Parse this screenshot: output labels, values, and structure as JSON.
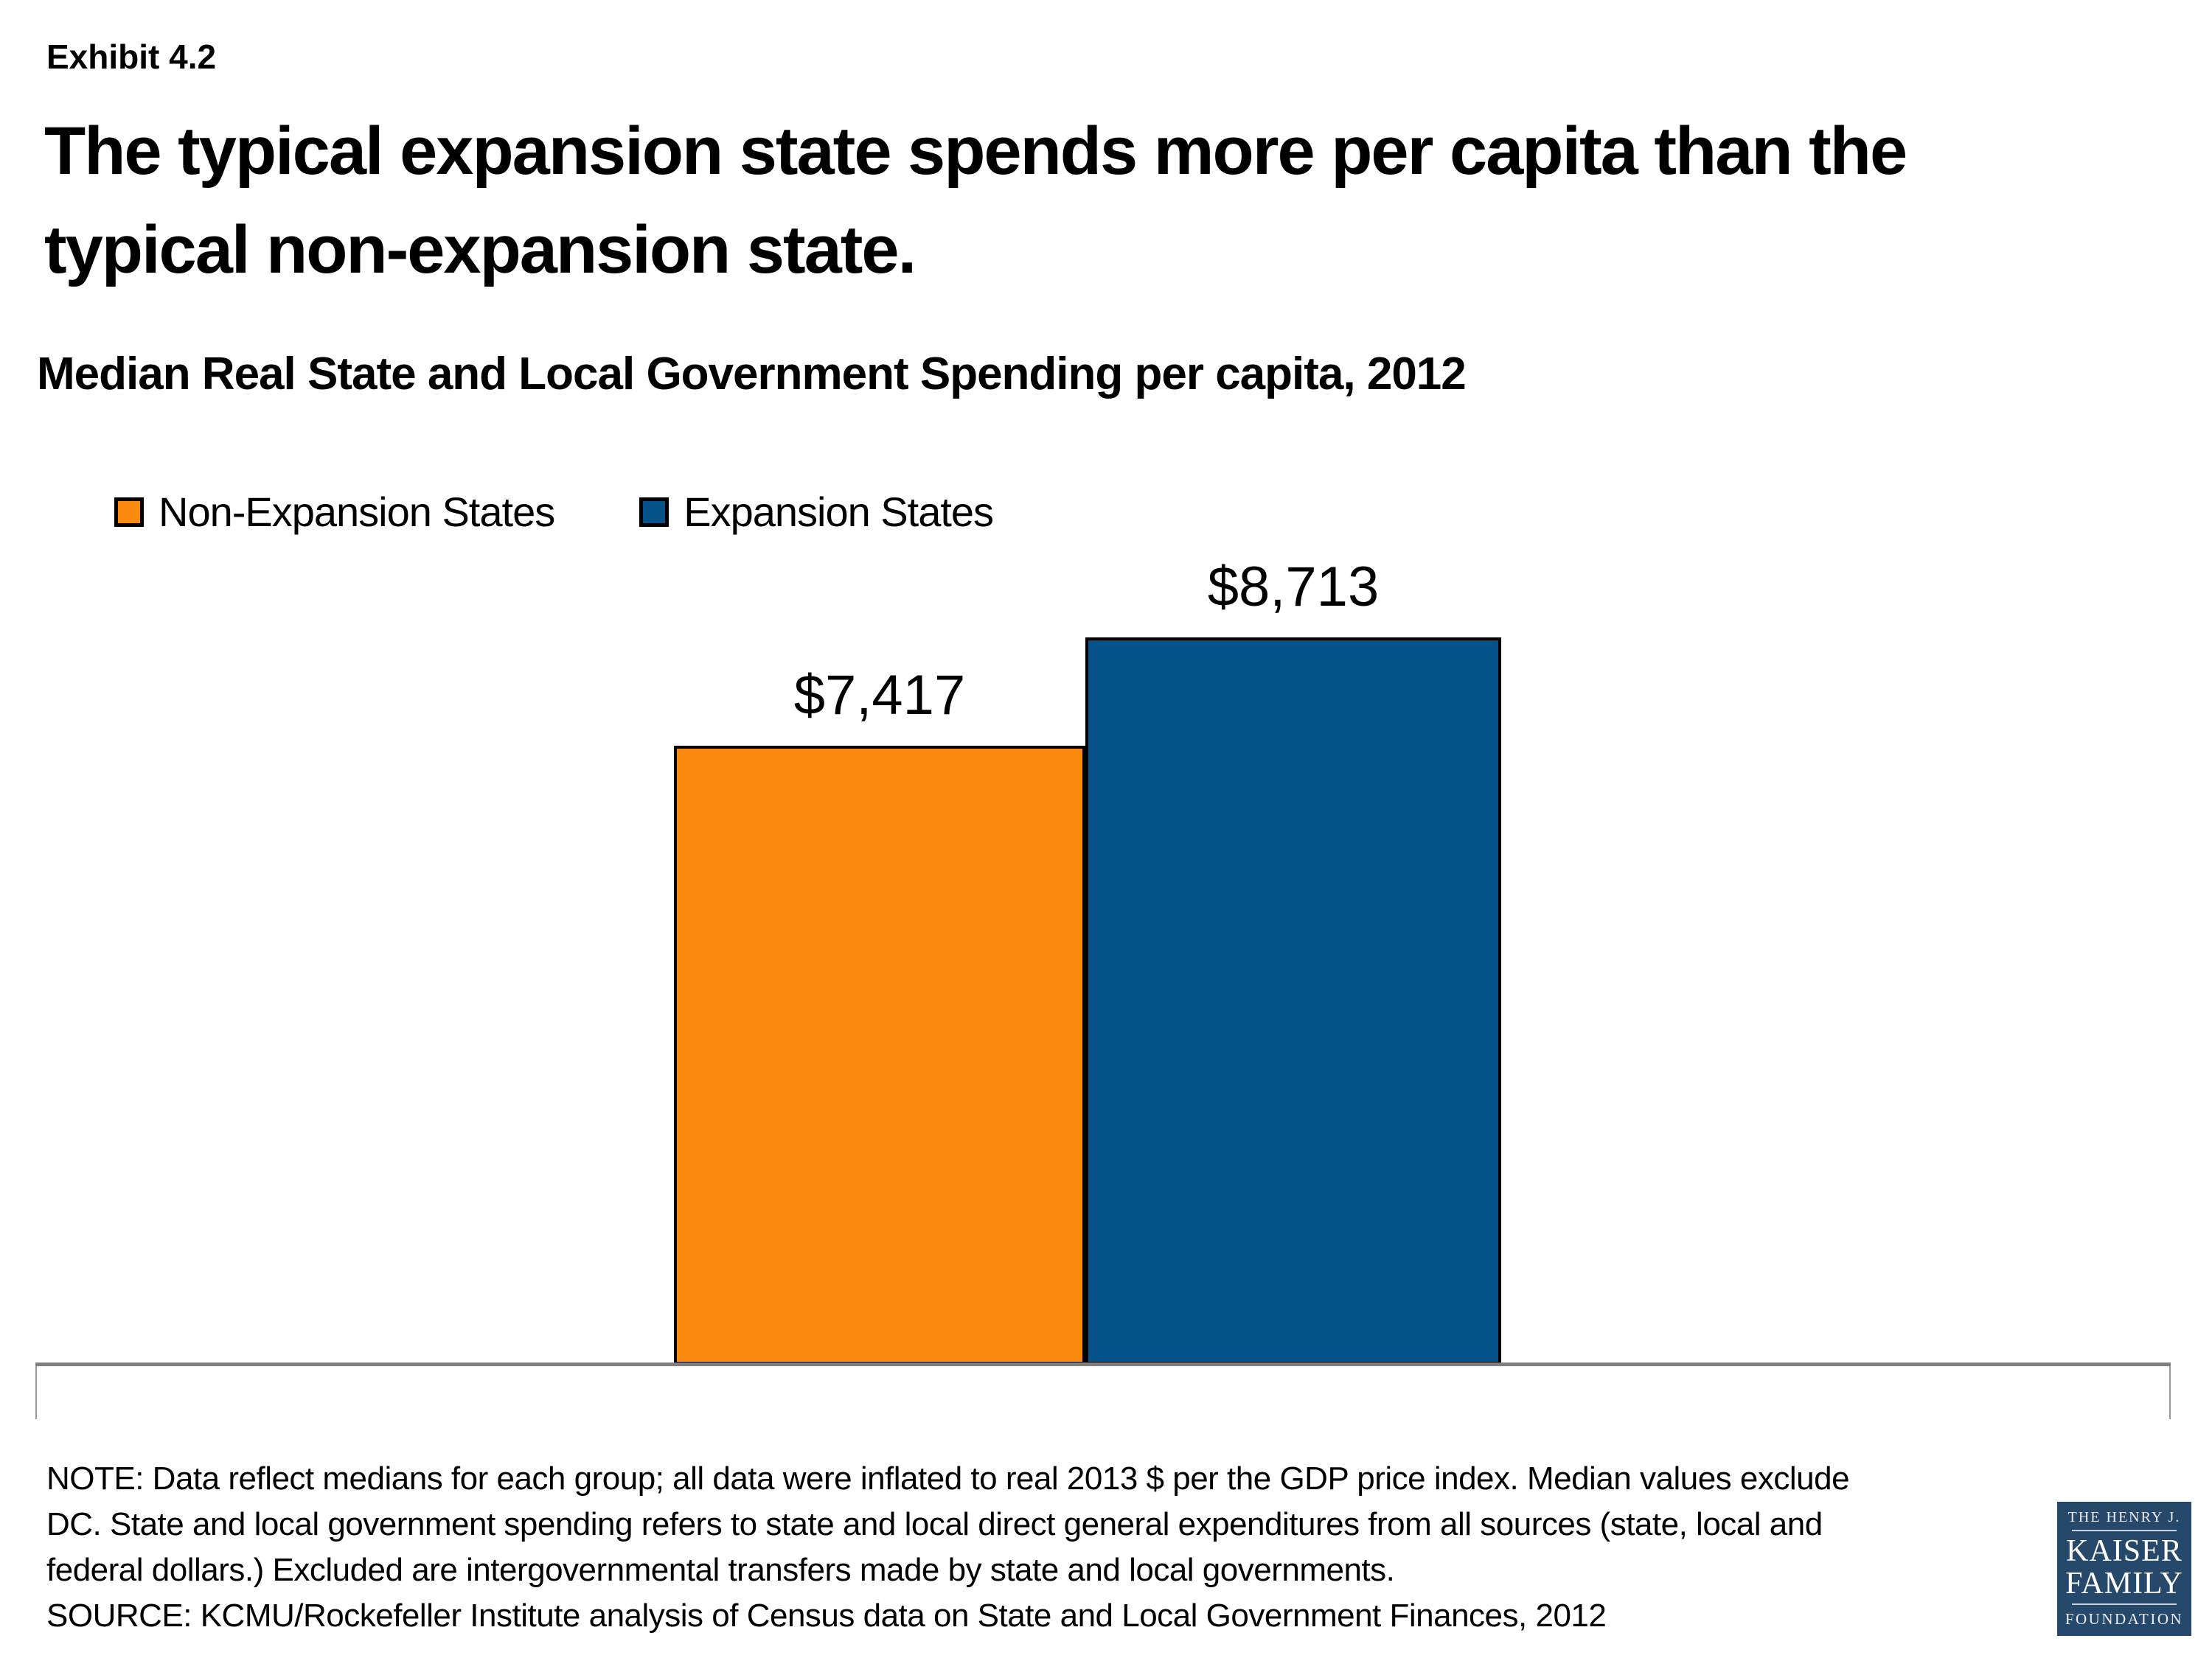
{
  "exhibit_label": "Exhibit 4.2",
  "title_lines": [
    "The typical expansion state spends more per capita than the",
    "typical non-expansion state."
  ],
  "subtitle": "Median Real State and Local Government Spending per capita, 2012",
  "legend": {
    "items": [
      {
        "label": "Non-Expansion States",
        "color": "#F98A0D"
      },
      {
        "label": "Expansion States",
        "color": "#05528A"
      }
    ]
  },
  "chart_data": {
    "type": "bar",
    "categories": [
      "Non-Expansion States",
      "Expansion States"
    ],
    "values": [
      7417,
      8713
    ],
    "value_labels": [
      "$7,417",
      "$8,713"
    ],
    "series_colors": [
      "#F98A0D",
      "#05528A"
    ],
    "title": "Median Real State and Local Government Spending per capita, 2012",
    "xlabel": "",
    "ylabel": "",
    "ylim": [
      0,
      8713
    ],
    "grid": false,
    "legend_position": "top-left",
    "bar_border_color": "#000000",
    "axis_color": "#808080"
  },
  "note": {
    "lines": [
      "NOTE: Data reflect medians for each group; all data were inflated to real 2013 $ per the GDP price index. Median values exclude",
      "DC. State and local government spending refers to state and local direct general expenditures from all sources (state, local and",
      "federal dollars.) Excluded are intergovernmental transfers made by state and local governments."
    ]
  },
  "source": "SOURCE: KCMU/Rockefeller Institute analysis of Census data on State and Local Government Finances, 2012",
  "logo": {
    "line1": "THE HENRY J.",
    "line2": "KAISER",
    "line3": "FAMILY",
    "line4": "FOUNDATION",
    "bg_color": "#26486B"
  }
}
